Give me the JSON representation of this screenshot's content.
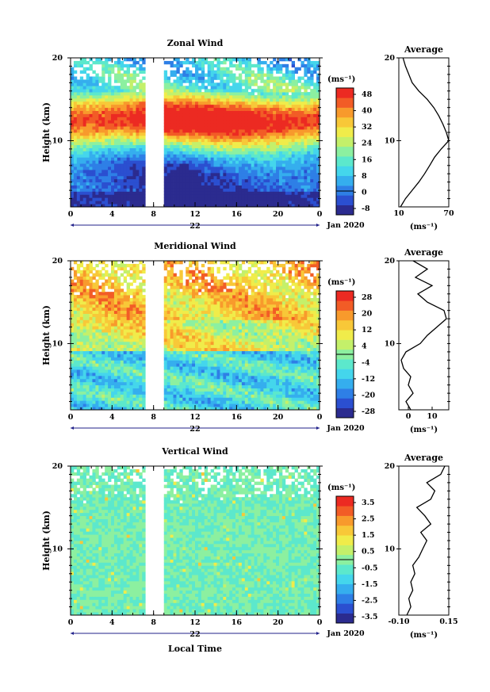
{
  "x_tick_labels": [
    "0",
    "4",
    "8",
    "12",
    "16",
    "20",
    "0"
  ],
  "date_label": "Jan 2020",
  "y_tick_labels": [
    "20",
    "10"
  ],
  "ylabel": "Height (km)",
  "xlabel": "Local Time",
  "colors": [
    "#2b2b8f",
    "#2b4fd0",
    "#2e7fe6",
    "#35aeee",
    "#44d6ec",
    "#5ce8cc",
    "#8cf0a0",
    "#c4f06a",
    "#f0ec4a",
    "#f8c838",
    "#f89a2c",
    "#f25c26",
    "#ec2a22"
  ],
  "chart_data": [
    {
      "type": "heatmap",
      "title": "Zonal Wind",
      "unit_label": "(ms⁻¹)",
      "day_label": "22",
      "x_range_hours": [
        0,
        24
      ],
      "y_range_km": [
        2,
        20
      ],
      "gap_hours": [
        7.2,
        9.0
      ],
      "colorbar_ticks": [
        "48",
        "40",
        "32",
        "24",
        "16",
        "8",
        "0",
        "-8"
      ],
      "colorbar_range": [
        -12,
        52
      ],
      "profile_title": "Average",
      "profile_unit": "(ms⁻¹)",
      "profile_xticks": [
        "10",
        "70"
      ],
      "profile_xrange": [
        10,
        70
      ],
      "profile": {
        "height_km": [
          2,
          3,
          4,
          5,
          6,
          7,
          8,
          9,
          10,
          11,
          12,
          13,
          14,
          15,
          16,
          17,
          18,
          19,
          20
        ],
        "value": [
          12,
          18,
          26,
          34,
          41,
          47,
          53,
          61,
          70,
          67,
          63,
          58,
          52,
          44,
          34,
          26,
          22,
          18,
          15
        ]
      }
    },
    {
      "type": "heatmap",
      "title": "Meridional Wind",
      "unit_label": "(ms⁻¹)",
      "day_label": "22",
      "x_range_hours": [
        0,
        24
      ],
      "y_range_km": [
        2,
        20
      ],
      "gap_hours": [
        7.2,
        9.0
      ],
      "colorbar_ticks": [
        "28",
        "20",
        "12",
        "4",
        "-4",
        "-12",
        "-20",
        "-28"
      ],
      "colorbar_range": [
        -32,
        32
      ],
      "profile_title": "Average",
      "profile_unit": "(ms⁻¹)",
      "profile_xticks": [
        "0",
        "10"
      ],
      "profile_xrange": [
        -4,
        17
      ],
      "profile": {
        "height_km": [
          2,
          3,
          4,
          5,
          6,
          7,
          8,
          9,
          10,
          11,
          12,
          13,
          14,
          15,
          16,
          17,
          18,
          19,
          20
        ],
        "value": [
          1,
          -1,
          2,
          0,
          1,
          -2,
          -3,
          -1,
          5,
          8,
          12,
          16,
          15,
          8,
          4,
          10,
          3,
          8,
          2
        ]
      }
    },
    {
      "type": "heatmap",
      "title": "Vertical Wind",
      "unit_label": "(ms⁻¹)",
      "day_label": "22",
      "x_range_hours": [
        0,
        24
      ],
      "y_range_km": [
        2,
        20
      ],
      "gap_hours": [
        7.2,
        9.0
      ],
      "colorbar_ticks": [
        "3.5",
        "2.5",
        "1.5",
        "0.5",
        "-0.5",
        "-1.5",
        "-2.5",
        "-3.5"
      ],
      "colorbar_range": [
        -4,
        4
      ],
      "profile_title": "Average",
      "profile_unit": "(ms⁻¹)",
      "profile_xticks": [
        "-0.10",
        "0.15"
      ],
      "profile_xrange": [
        -0.1,
        0.15
      ],
      "profile": {
        "height_km": [
          2,
          3,
          4,
          5,
          6,
          7,
          8,
          9,
          10,
          11,
          12,
          13,
          14,
          15,
          16,
          17,
          18,
          19,
          20
        ],
        "value": [
          -0.06,
          -0.04,
          -0.05,
          -0.03,
          -0.04,
          -0.02,
          -0.03,
          0.0,
          0.02,
          0.04,
          0.01,
          0.06,
          0.03,
          -0.01,
          0.06,
          0.08,
          0.04,
          0.11,
          0.13
        ]
      }
    }
  ]
}
